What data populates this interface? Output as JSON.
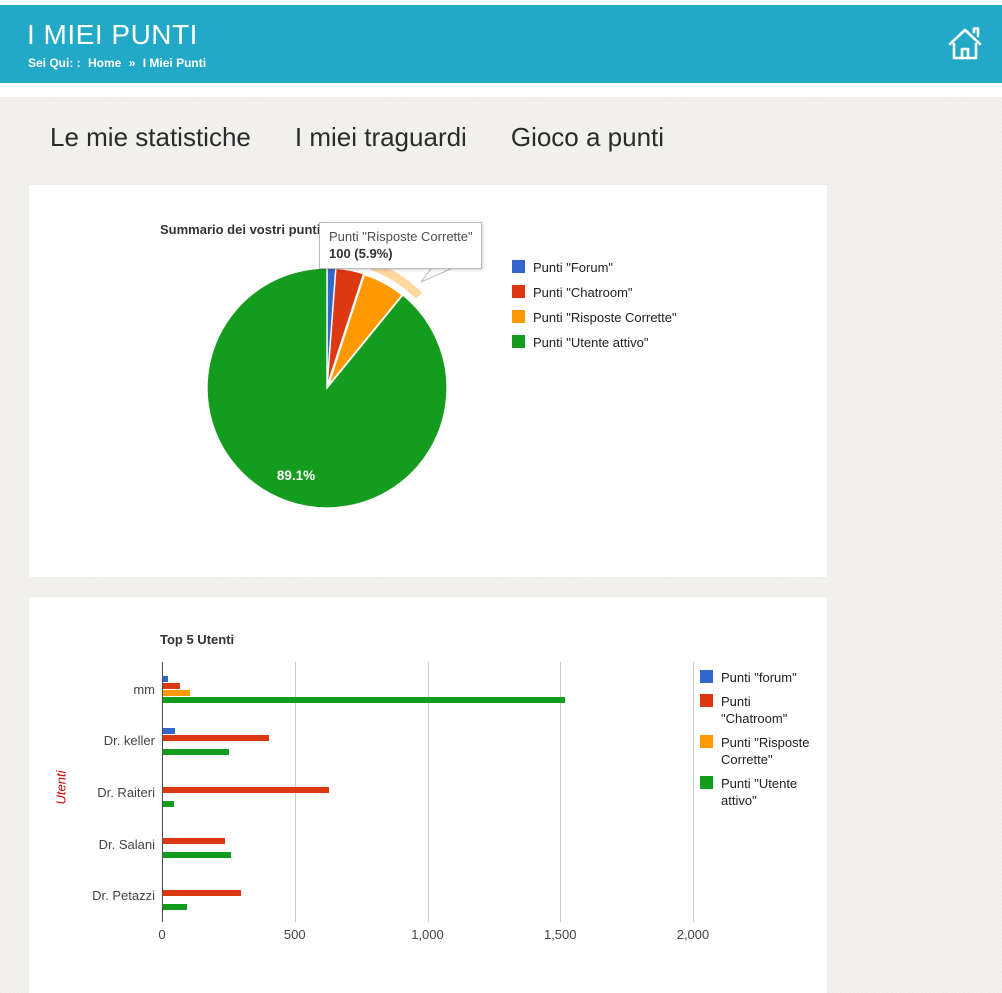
{
  "header": {
    "title": "I MIEI PUNTI",
    "breadcrumb": {
      "prefix": "Sei Qui: :",
      "home": "Home",
      "separator": "»",
      "current": "I Miei Punti"
    }
  },
  "nav": {
    "item1": "Le mie statistiche",
    "item2": "I miei traguardi",
    "item3": "Gioco a punti"
  },
  "tooltip": {
    "line1": "Punti \"Risposte Corrette\"",
    "line2": "100 (5.9%)"
  },
  "colors": {
    "header_teal": "#21a9c7",
    "series_blue": "#3366CC",
    "series_red": "#DC3912",
    "series_orange": "#FF9900",
    "series_green": "#149C1E"
  },
  "chart_data": [
    {
      "type": "pie",
      "title": "Summario dei vostri punti",
      "legend_position": "right",
      "slices": [
        {
          "label": "Punti \"Forum\"",
          "value": 20,
          "pct": 1.2,
          "color": "#3366CC"
        },
        {
          "label": "Punti \"Chatroom\"",
          "value": 65,
          "pct": 3.8,
          "color": "#DC3912"
        },
        {
          "label": "Punti \"Risposte Corrette\"",
          "value": 100,
          "pct": 5.9,
          "color": "#FF9900",
          "highlighted": true
        },
        {
          "label": "Punti \"Utente attivo\"",
          "value": 1515,
          "pct": 89.1,
          "color": "#149C1E",
          "show_label": "89.1%"
        }
      ]
    },
    {
      "type": "bar",
      "title": "Top 5 Utenti",
      "orientation": "horizontal",
      "ylabel": "Utenti",
      "legend_position": "right",
      "categories": [
        "mm",
        "Dr. keller",
        "Dr. Raiteri",
        "Dr. Salani",
        "Dr. Petazzi"
      ],
      "series": [
        {
          "name": "Punti \"forum\"",
          "color": "#3366CC",
          "values": [
            20,
            45,
            0,
            0,
            0
          ]
        },
        {
          "name": "Punti \"Chatroom\"",
          "color": "#DC3912",
          "values": [
            65,
            400,
            625,
            235,
            295
          ]
        },
        {
          "name": "Punti \"Risposte Corrette\"",
          "color": "#FF9900",
          "values": [
            100,
            0,
            0,
            0,
            0
          ]
        },
        {
          "name": "Punti \"Utente attivo\"",
          "color": "#149C1E",
          "values": [
            1515,
            250,
            40,
            255,
            90
          ]
        }
      ],
      "xlim": [
        0,
        2000
      ],
      "tick_values": [
        0,
        500,
        1000,
        1500,
        2000
      ],
      "tick_labels": [
        "0",
        "500",
        "1,000",
        "1,500",
        "2,000"
      ],
      "grid": true
    }
  ]
}
